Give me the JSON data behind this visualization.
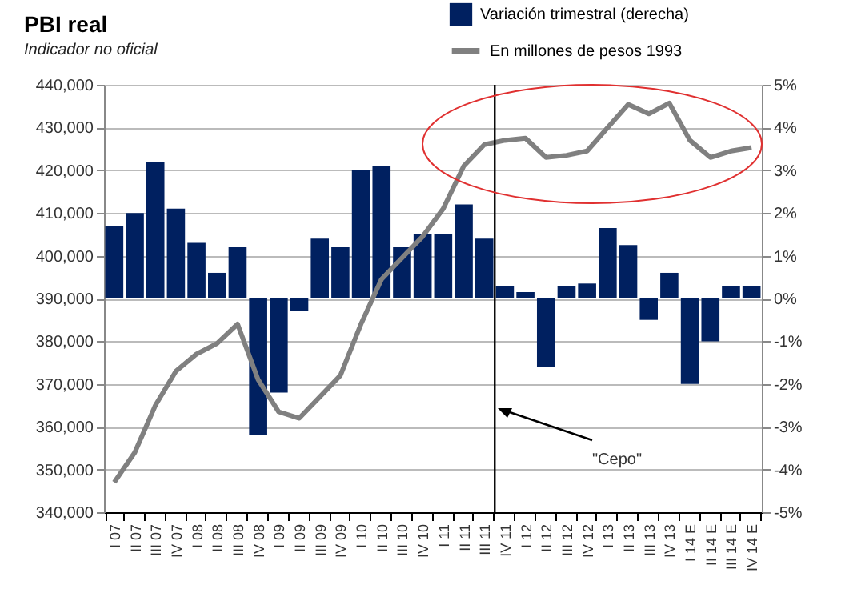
{
  "chart_data": {
    "type": "bar",
    "title": "PBI real",
    "subtitle": "Indicador no oficial",
    "categories": [
      "I 07",
      "II 07",
      "III 07",
      "IV 07",
      "I 08",
      "II 08",
      "III 08",
      "IV 08",
      "I 09",
      "II 09",
      "III 09",
      "IV 09",
      "I 10",
      "II 10",
      "III 10",
      "IV 10",
      "I 11",
      "II 11",
      "III 11",
      "IV 11",
      "I 12",
      "II 12",
      "III 12",
      "IV 12",
      "I 13",
      "II 13",
      "III 13",
      "IV 13",
      "I 14 E",
      "II 14 E",
      "III 14 E",
      "IV 14 E"
    ],
    "series": [
      {
        "name": "Variación trimestral (derecha)",
        "axis": "y2",
        "color": "#002060",
        "values": [
          1.7,
          2.0,
          3.2,
          2.1,
          1.3,
          0.6,
          1.2,
          -3.2,
          -2.2,
          -0.3,
          1.4,
          1.2,
          3.0,
          3.1,
          1.2,
          1.5,
          1.5,
          2.2,
          1.4,
          0.3,
          0.15,
          -1.6,
          0.3,
          0.35,
          1.65,
          1.25,
          -0.5,
          0.6,
          -2.0,
          -1.0,
          0.3,
          0.3
        ]
      },
      {
        "name": "En millones de pesos 1993",
        "type": "line",
        "color": "#808080",
        "values": [
          347000,
          354000,
          365000,
          373000,
          377000,
          379500,
          384000,
          371000,
          363500,
          362000,
          367000,
          372000,
          384000,
          394500,
          399500,
          404500,
          411000,
          421000,
          426000,
          427000,
          427500,
          423000,
          423500,
          424500,
          430000,
          435400,
          433200,
          435700,
          427000,
          423000,
          424500,
          425300
        ]
      }
    ],
    "ylim": [
      340000,
      440000
    ],
    "yticks": [
      {
        "value": 340000,
        "label": "340,000"
      },
      {
        "value": 350000,
        "label": "350,000"
      },
      {
        "value": 360000,
        "label": "360,000"
      },
      {
        "value": 370000,
        "label": "370,000"
      },
      {
        "value": 380000,
        "label": "380,000"
      },
      {
        "value": 390000,
        "label": "390,000"
      },
      {
        "value": 400000,
        "label": "400,000"
      },
      {
        "value": 410000,
        "label": "410,000"
      },
      {
        "value": 420000,
        "label": "420,000"
      },
      {
        "value": 430000,
        "label": "430,000"
      },
      {
        "value": 440000,
        "label": "440,000"
      }
    ],
    "y2lim": [
      -5,
      5
    ],
    "y2ticks": [
      {
        "value": -5,
        "label": "-5%"
      },
      {
        "value": -4,
        "label": "-4%"
      },
      {
        "value": -3,
        "label": "-3%"
      },
      {
        "value": -2,
        "label": "-2%"
      },
      {
        "value": -1,
        "label": "-1%"
      },
      {
        "value": 0,
        "label": "0%"
      },
      {
        "value": 1,
        "label": "1%"
      },
      {
        "value": 2,
        "label": "2%"
      },
      {
        "value": 3,
        "label": "3%"
      },
      {
        "value": 4,
        "label": "4%"
      },
      {
        "value": 5,
        "label": "5%"
      }
    ],
    "grid": "y",
    "legend": "top right",
    "ref_lines": [
      {
        "axis": "x",
        "value": "IV 11",
        "color": "#000000"
      }
    ],
    "annotations": [
      "\"Cepo\""
    ]
  }
}
